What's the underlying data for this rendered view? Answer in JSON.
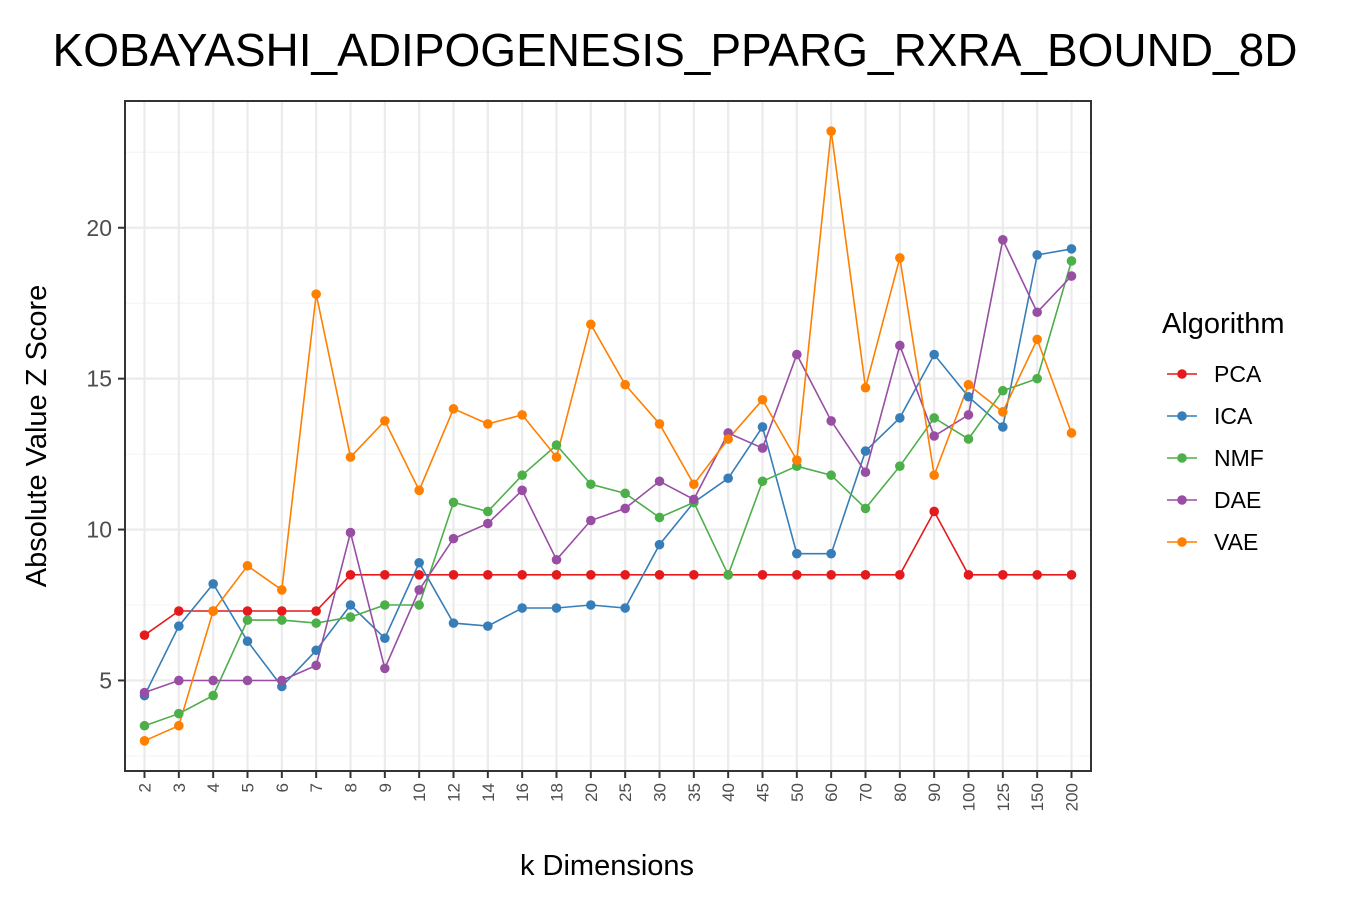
{
  "chart_data": {
    "type": "line",
    "title": "KOBAYASHI_ADIPOGENESIS_PPARG_RXRA_BOUND_8D",
    "xlabel": "k Dimensions",
    "ylabel": "Absolute Value Z Score",
    "ylim": [
      2.0,
      24.2
    ],
    "yticks": [
      5,
      10,
      15,
      20
    ],
    "grid": true,
    "legend": {
      "title": "Algorithm",
      "position": "right"
    },
    "categories": [
      "2",
      "3",
      "4",
      "5",
      "6",
      "7",
      "8",
      "9",
      "10",
      "12",
      "14",
      "16",
      "18",
      "20",
      "25",
      "30",
      "35",
      "40",
      "45",
      "50",
      "60",
      "70",
      "80",
      "90",
      "100",
      "125",
      "150",
      "200"
    ],
    "series": [
      {
        "name": "PCA",
        "color": "#e41a1c",
        "values": [
          6.5,
          7.3,
          7.3,
          7.3,
          7.3,
          7.3,
          8.5,
          8.5,
          8.5,
          8.5,
          8.5,
          8.5,
          8.5,
          8.5,
          8.5,
          8.5,
          8.5,
          8.5,
          8.5,
          8.5,
          8.5,
          8.5,
          8.5,
          10.6,
          8.5,
          8.5,
          8.5,
          8.5
        ]
      },
      {
        "name": "ICA",
        "color": "#377eb8",
        "values": [
          4.5,
          6.8,
          8.2,
          6.3,
          4.8,
          6.0,
          7.5,
          6.4,
          8.9,
          6.9,
          6.8,
          7.4,
          7.4,
          7.5,
          7.4,
          9.5,
          10.9,
          11.7,
          13.4,
          9.2,
          9.2,
          12.6,
          13.7,
          15.8,
          14.4,
          13.4,
          19.1,
          19.3
        ]
      },
      {
        "name": "NMF",
        "color": "#4daf4a",
        "values": [
          3.5,
          3.9,
          4.5,
          7.0,
          7.0,
          6.9,
          7.1,
          7.5,
          7.5,
          10.9,
          10.6,
          11.8,
          12.8,
          11.5,
          11.2,
          10.4,
          10.9,
          8.5,
          11.6,
          12.1,
          11.8,
          10.7,
          12.1,
          13.7,
          13.0,
          14.6,
          15.0,
          18.9
        ]
      },
      {
        "name": "DAE",
        "color": "#984ea3",
        "values": [
          4.6,
          5.0,
          5.0,
          5.0,
          5.0,
          5.5,
          9.9,
          5.4,
          8.0,
          9.7,
          10.2,
          11.3,
          9.0,
          10.3,
          10.7,
          11.6,
          11.0,
          13.2,
          12.7,
          15.8,
          13.6,
          11.9,
          16.1,
          13.1,
          13.8,
          19.6,
          17.2,
          18.4
        ]
      },
      {
        "name": "VAE",
        "color": "#ff7f00",
        "values": [
          3.0,
          3.5,
          7.3,
          8.8,
          8.0,
          17.8,
          12.4,
          13.6,
          11.3,
          14.0,
          13.5,
          13.8,
          12.4,
          16.8,
          14.8,
          13.5,
          11.5,
          13.0,
          14.3,
          12.3,
          23.2,
          14.7,
          19.0,
          11.8,
          14.8,
          13.9,
          16.3,
          13.2
        ]
      }
    ]
  }
}
